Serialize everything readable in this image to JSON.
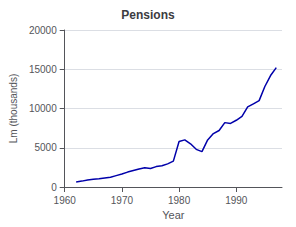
{
  "chart_data": {
    "type": "line",
    "title": "Pensions",
    "xlabel": "Year",
    "ylabel": "Lm (thousands)",
    "x": [
      1962,
      1963,
      1964,
      1965,
      1966,
      1967,
      1968,
      1969,
      1970,
      1971,
      1972,
      1973,
      1974,
      1975,
      1976,
      1977,
      1978,
      1979,
      1980,
      1981,
      1982,
      1983,
      1984,
      1985,
      1986,
      1987,
      1988,
      1989,
      1990,
      1991,
      1992,
      1993,
      1994,
      1995,
      1996,
      1997
    ],
    "values": [
      650,
      750,
      900,
      1000,
      1050,
      1150,
      1250,
      1450,
      1650,
      1900,
      2100,
      2300,
      2450,
      2350,
      2600,
      2700,
      2950,
      3300,
      5800,
      6000,
      5500,
      4800,
      4500,
      6000,
      6800,
      7200,
      8200,
      8100,
      8500,
      9000,
      10200,
      10600,
      11000,
      12800,
      14200,
      15200
    ],
    "color": "#0000AA",
    "xlim": [
      1960,
      1998
    ],
    "xticks": [
      1960,
      1970,
      1980,
      1990
    ],
    "ylim": [
      0,
      20000
    ],
    "yticks": [
      0,
      5000,
      10000,
      15000,
      20000
    ],
    "grid": true
  }
}
